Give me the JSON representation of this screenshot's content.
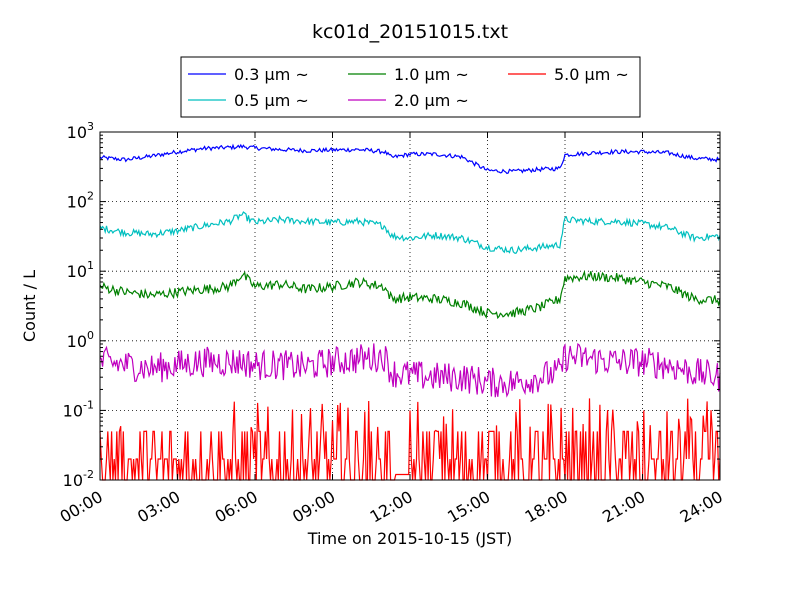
{
  "chart_data": {
    "type": "line",
    "title": "kc01d_20151015.txt",
    "xlabel": "Time on 2015-10-15 (JST)",
    "ylabel": "Count / L",
    "yscale": "log",
    "xlim": [
      "00:00",
      "24:00"
    ],
    "ylim": [
      0.01,
      1000
    ],
    "grid": true,
    "legend_position": "top, above plot",
    "xticks": [
      "00:00",
      "03:00",
      "06:00",
      "09:00",
      "12:00",
      "15:00",
      "18:00",
      "21:00",
      "24:00"
    ],
    "yticks": [
      {
        "base": "10",
        "exp": "-2"
      },
      {
        "base": "10",
        "exp": "-1"
      },
      {
        "base": "10",
        "exp": "0"
      },
      {
        "base": "10",
        "exp": "1"
      },
      {
        "base": "10",
        "exp": "2"
      },
      {
        "base": "10",
        "exp": "3"
      }
    ],
    "x_hours": [
      0,
      1,
      2,
      3,
      4,
      5,
      5.5,
      6,
      7,
      8,
      9,
      10,
      11,
      11.3,
      12,
      13,
      14,
      15,
      16,
      17,
      17.8,
      18,
      19,
      20,
      21,
      22,
      23,
      24
    ],
    "series": [
      {
        "name": "0.3 μm ~",
        "color": "#0000ff",
        "values": [
          430,
          400,
          450,
          520,
          580,
          600,
          620,
          590,
          560,
          540,
          550,
          560,
          520,
          430,
          480,
          480,
          440,
          280,
          270,
          290,
          300,
          470,
          500,
          520,
          520,
          500,
          420,
          400
        ]
      },
      {
        "name": "0.5 μm ~",
        "color": "#00bfbf",
        "values": [
          42,
          36,
          34,
          38,
          45,
          52,
          65,
          50,
          55,
          52,
          50,
          52,
          45,
          32,
          30,
          33,
          30,
          22,
          20,
          22,
          24,
          55,
          52,
          52,
          48,
          42,
          30,
          32
        ]
      },
      {
        "name": "1.0 μm ~",
        "color": "#008000",
        "values": [
          6,
          5,
          4.5,
          5,
          5.5,
          6,
          9,
          6,
          6.5,
          5.5,
          6,
          7,
          6,
          4,
          4.2,
          4,
          3.5,
          2.5,
          2.5,
          3,
          4,
          8,
          8.5,
          8,
          7,
          6,
          4,
          3.8
        ]
      },
      {
        "name": "2.0 μm ~",
        "color": "#bf00bf",
        "values": [
          0.5,
          0.45,
          0.4,
          0.45,
          0.5,
          0.5,
          0.5,
          0.45,
          0.45,
          0.42,
          0.5,
          0.55,
          0.6,
          0.35,
          0.32,
          0.3,
          0.3,
          0.25,
          0.25,
          0.3,
          0.35,
          0.6,
          0.55,
          0.5,
          0.5,
          0.45,
          0.35,
          0.3
        ]
      },
      {
        "name": "5.0 μm ~",
        "color": "#ff0000",
        "values": [
          0.012,
          0.05,
          0.02,
          0.03,
          0.05,
          0.1,
          0.03,
          0.02,
          0.04,
          0.03,
          0.05,
          0.03,
          0.15,
          0.02,
          0.03,
          0.02,
          0.03,
          0.01,
          0.02,
          0.03,
          0.04,
          0.05,
          0.03,
          0.04,
          0.02,
          0.05,
          0.03,
          0.02
        ]
      }
    ]
  }
}
